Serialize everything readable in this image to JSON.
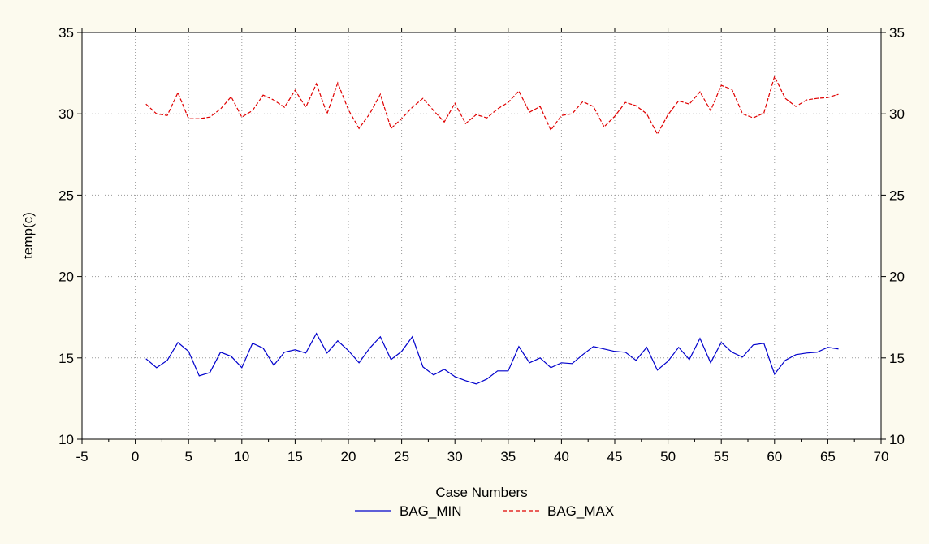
{
  "chart_data": {
    "type": "line",
    "title": "",
    "xlabel": "Case Numbers",
    "ylabel": "temp(c)",
    "xlim": [
      -5,
      70
    ],
    "ylim": [
      10,
      35
    ],
    "xticks": [
      -5,
      0,
      5,
      10,
      15,
      20,
      25,
      30,
      35,
      40,
      45,
      50,
      55,
      60,
      65,
      70
    ],
    "yticks": [
      10,
      15,
      20,
      25,
      30,
      35
    ],
    "y_right_axis": true,
    "grid": true,
    "legend_position": "bottom-center",
    "x": [
      1,
      2,
      3,
      4,
      5,
      6,
      7,
      8,
      9,
      10,
      11,
      12,
      13,
      14,
      15,
      16,
      17,
      18,
      19,
      20,
      21,
      22,
      23,
      24,
      25,
      26,
      27,
      28,
      29,
      30,
      31,
      32,
      33,
      34,
      35,
      36,
      37,
      38,
      39,
      40,
      41,
      42,
      43,
      44,
      45,
      46,
      47,
      48,
      49,
      50,
      51,
      52,
      53,
      54,
      55,
      56,
      57,
      58,
      59,
      60,
      61,
      62,
      63,
      64,
      65,
      66
    ],
    "series": [
      {
        "name": "BAG_MIN",
        "color": "#0000cc",
        "line_style": "solid",
        "values": [
          14.95,
          14.4,
          14.85,
          15.95,
          15.4,
          13.9,
          14.1,
          15.35,
          15.1,
          14.4,
          15.9,
          15.6,
          14.55,
          15.35,
          15.5,
          15.3,
          16.5,
          15.3,
          16.05,
          15.45,
          14.7,
          15.6,
          16.3,
          14.9,
          15.4,
          16.3,
          14.45,
          13.95,
          14.3,
          13.85,
          13.6,
          13.4,
          13.7,
          14.2,
          14.2,
          15.7,
          14.7,
          15.0,
          14.4,
          14.7,
          14.65,
          15.2,
          15.7,
          15.55,
          15.4,
          15.35,
          14.85,
          15.65,
          14.25,
          14.8,
          15.65,
          14.9,
          16.2,
          14.7,
          15.95,
          15.35,
          15.05,
          15.8,
          15.9,
          14.0,
          14.85,
          15.2,
          15.3,
          15.35,
          15.65,
          15.55
        ]
      },
      {
        "name": "BAG_MAX",
        "color": "#e00000",
        "line_style": "dashed",
        "values": [
          30.6,
          30.0,
          29.9,
          31.3,
          29.7,
          29.7,
          29.8,
          30.3,
          31.05,
          29.8,
          30.2,
          31.15,
          30.85,
          30.4,
          31.45,
          30.4,
          31.85,
          30.0,
          31.9,
          30.25,
          29.1,
          30.0,
          31.2,
          29.1,
          29.7,
          30.4,
          30.95,
          30.2,
          29.5,
          30.65,
          29.4,
          29.95,
          29.75,
          30.3,
          30.7,
          31.4,
          30.1,
          30.45,
          29.0,
          29.9,
          30.0,
          30.75,
          30.45,
          29.2,
          29.85,
          30.7,
          30.5,
          30.0,
          28.75,
          29.95,
          30.8,
          30.6,
          31.35,
          30.2,
          31.75,
          31.5,
          30.0,
          29.75,
          30.05,
          32.3,
          30.95,
          30.45,
          30.85,
          30.95,
          31.0,
          31.2
        ]
      }
    ]
  }
}
